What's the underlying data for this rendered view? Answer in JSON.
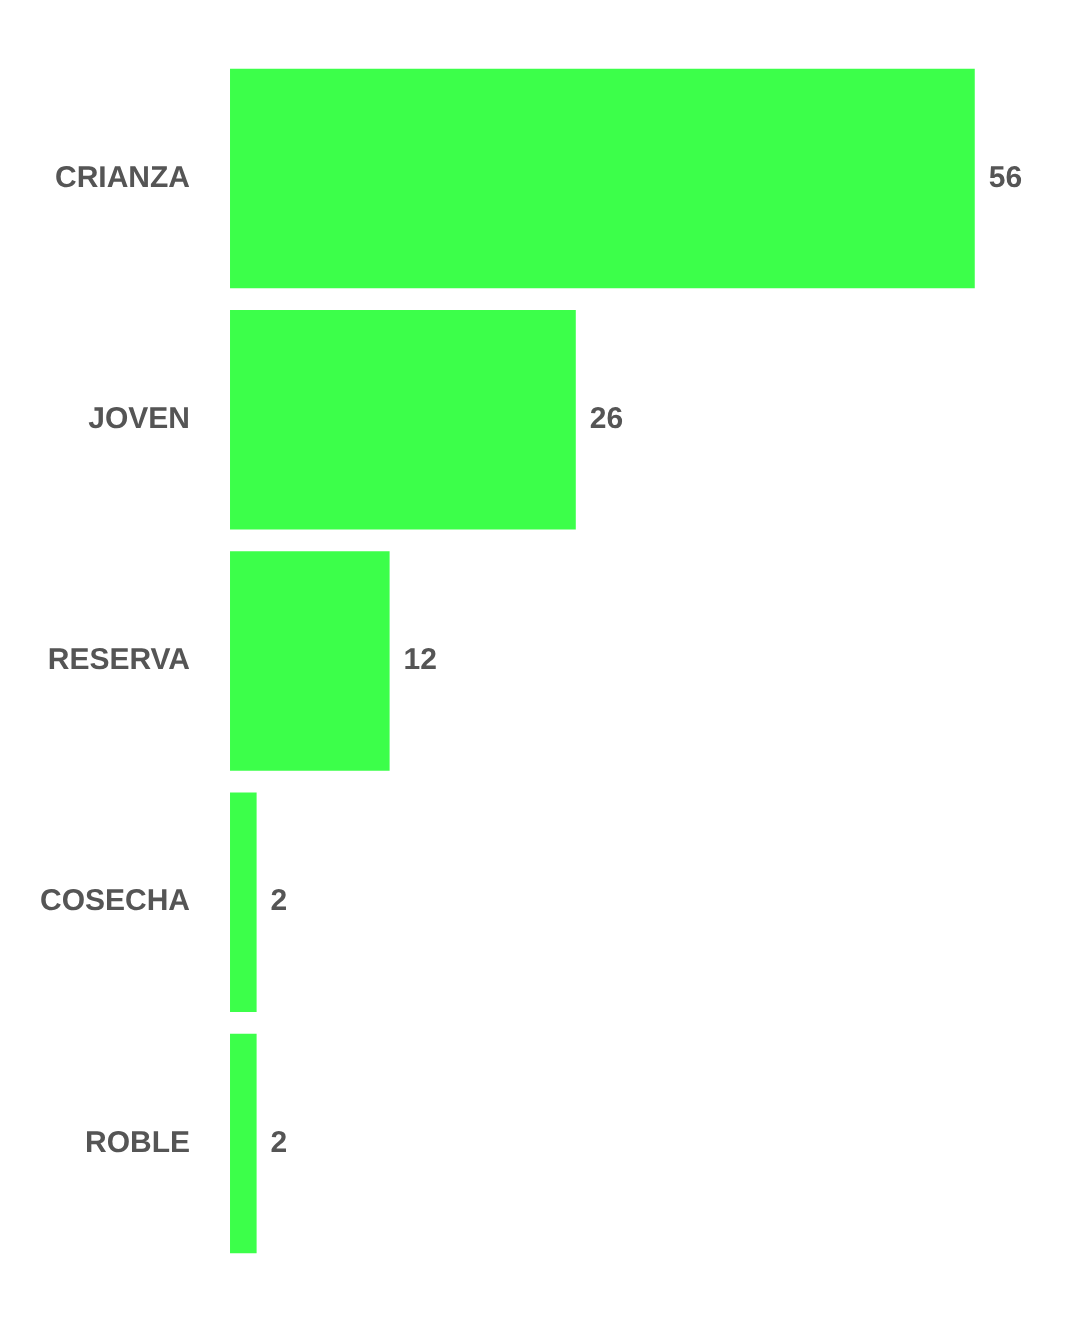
{
  "chart_data": {
    "type": "bar",
    "orientation": "horizontal",
    "categories": [
      "CRIANZA",
      "JOVEN",
      "RESERVA",
      "COSECHA",
      "ROBLE"
    ],
    "values": [
      56,
      26,
      12,
      2,
      2
    ],
    "color": "#3cff4a",
    "data_labels": true,
    "legend": false
  }
}
